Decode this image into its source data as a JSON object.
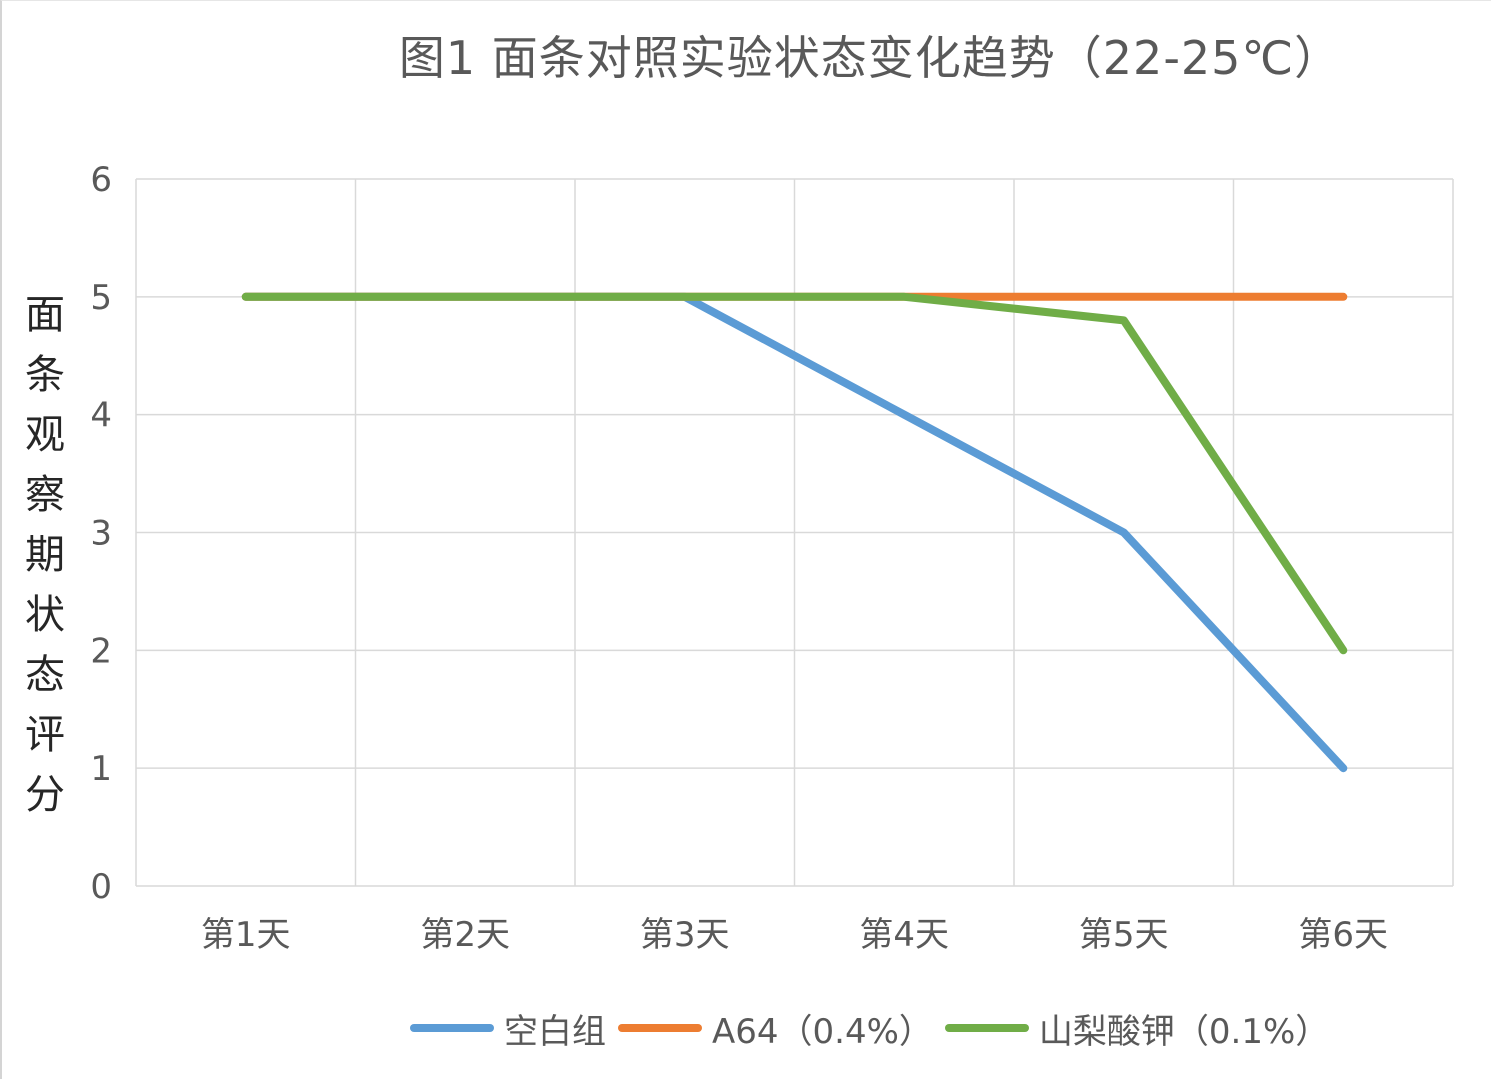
{
  "chart_data": {
    "type": "line",
    "title": "图1  面条对照实验状态变化趋势（22-25℃）",
    "xlabel": "",
    "ylabel": "面条观察期状态评分",
    "categories": [
      "第1天",
      "第2天",
      "第3天",
      "第4天",
      "第5天",
      "第6天"
    ],
    "ylim": [
      0,
      6
    ],
    "yticks": [
      0,
      1,
      2,
      3,
      4,
      5,
      6
    ],
    "grid": true,
    "legend_position": "bottom",
    "series": [
      {
        "name": "空白组",
        "color": "#5b9bd5",
        "values": [
          5,
          5,
          5,
          4,
          3,
          1
        ]
      },
      {
        "name": "A64（0.4%）",
        "color": "#ed7d31",
        "values": [
          5,
          5,
          5,
          5,
          5,
          5
        ]
      },
      {
        "name": "山梨酸钾（0.1%）",
        "color": "#70ad47",
        "values": [
          5,
          5,
          5,
          5,
          4.8,
          2
        ]
      }
    ]
  }
}
